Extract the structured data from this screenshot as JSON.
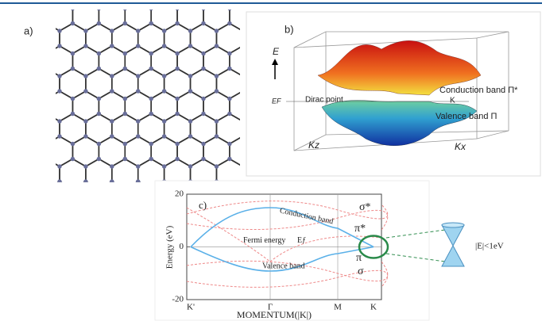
{
  "panel_a": {
    "label": "a)"
  },
  "panel_b": {
    "label": "b)",
    "energy_axis": "E",
    "fermi": "EF",
    "dirac": "Dirac point",
    "k_point": "K",
    "conduction": "Conduction band Π*",
    "valence": "Valence band Π",
    "kz": "Kz",
    "kx": "Kx"
  },
  "panel_c": {
    "label": "c)",
    "ylabel": "Energy (eV)",
    "xlabel": "MOMENTUM(|K|)",
    "ylim": [
      -20,
      20
    ],
    "yticks": [
      20,
      0,
      -20
    ],
    "xcategories": [
      "K'",
      "Γ",
      "M",
      "K"
    ],
    "conduction": "Conduction band",
    "valence": "Valence band",
    "fermi": "Fermi energy",
    "ef": "Eƒ",
    "sigma_star": "σ*",
    "pi_star": "π*",
    "pi": "π",
    "sigma": "σ",
    "cone": "|E|<1eV"
  }
}
